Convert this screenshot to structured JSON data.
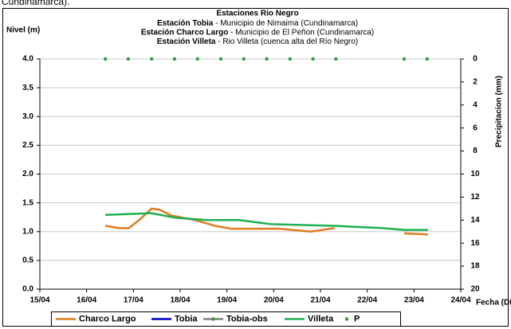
{
  "caption": "Cundinamarca).",
  "chart_data": {
    "type": "line",
    "title": "Estaciones Rio Negro",
    "subtitle": [
      {
        "station": "Estación Tobia",
        "place": " - Municipio de Nimaima (Cundinamarca)"
      },
      {
        "station": "Estación Charco Largo",
        "place": " - Municipio de El Peñon (Cundinamarca)"
      },
      {
        "station": "Estación Villeta",
        "place": " -  Rio Villeta (cuenca alta del Río Negro)"
      }
    ],
    "y_label": "Nivel (m)",
    "y2_label": "Precipitacion (mm)",
    "x_label": "Fecha (DD/M/AA)",
    "xlim": [
      0,
      9
    ],
    "xticks": [
      {
        "value": 0,
        "label": "15/04"
      },
      {
        "value": 1,
        "label": "16/04"
      },
      {
        "value": 2,
        "label": "17/04"
      },
      {
        "value": 3,
        "label": "18/04"
      },
      {
        "value": 4,
        "label": "19/04"
      },
      {
        "value": 5,
        "label": "20/04"
      },
      {
        "value": 6,
        "label": "21/04"
      },
      {
        "value": 7,
        "label": "22/04"
      },
      {
        "value": 8,
        "label": "23/04"
      },
      {
        "value": 9,
        "label": "24/04"
      }
    ],
    "ylim": [
      0,
      4
    ],
    "yticks": [
      {
        "value": 0,
        "label": "0.0"
      },
      {
        "value": 0.5,
        "label": "0.5"
      },
      {
        "value": 1,
        "label": "1.0"
      },
      {
        "value": 1.5,
        "label": "1.5"
      },
      {
        "value": 2,
        "label": "2.0"
      },
      {
        "value": 2.5,
        "label": "2.5"
      },
      {
        "value": 3,
        "label": "3.0"
      },
      {
        "value": 3.5,
        "label": "3.5"
      },
      {
        "value": 4,
        "label": "4.0"
      }
    ],
    "y2lim": [
      0,
      20
    ],
    "y2ticks": [
      0,
      2,
      4,
      6,
      8,
      10,
      12,
      14,
      16,
      18,
      20
    ],
    "y2_inverted": true,
    "grid": true,
    "legend": "bottom",
    "series": [
      {
        "name": "Charco Largo",
        "color": "#e07b20",
        "style": "line",
        "x": [
          1.4,
          1.7,
          1.9,
          2.12,
          2.39,
          2.56,
          2.81,
          3.32,
          3.75,
          4.09,
          5.11,
          5.79,
          6.3,
          null,
          7.79,
          8.3
        ],
        "values": [
          1.1,
          1.06,
          1.06,
          1.2,
          1.4,
          1.38,
          1.28,
          1.2,
          1.1,
          1.05,
          1.05,
          1.0,
          1.06,
          null,
          0.97,
          0.95
        ]
      },
      {
        "name": "Tobia",
        "color": "#0000cc",
        "style": "line",
        "x": [],
        "values": []
      },
      {
        "name": "Tobia-obs",
        "color": "#808080",
        "marker_color": "#339933",
        "style": "line-markers",
        "x": [],
        "values": []
      },
      {
        "name": "Villeta",
        "color": "#1fb050",
        "style": "line",
        "x": [
          1.4,
          2.39,
          2.9,
          3.58,
          4.26,
          4.94,
          6.3,
          7.33,
          7.79,
          8.3
        ],
        "values": [
          1.29,
          1.32,
          1.24,
          1.2,
          1.2,
          1.13,
          1.1,
          1.06,
          1.03,
          1.03
        ]
      },
      {
        "name": "P",
        "color": "#2e9e3e",
        "style": "markers",
        "axis": "y2",
        "x": [
          1.4,
          1.89,
          2.39,
          2.88,
          3.37,
          3.87,
          4.36,
          4.85,
          5.35,
          5.84,
          6.33,
          7.79,
          8.28
        ],
        "values": [
          0,
          0,
          0,
          0,
          0,
          0,
          0,
          0,
          0,
          0,
          0,
          0,
          0
        ]
      }
    ]
  }
}
